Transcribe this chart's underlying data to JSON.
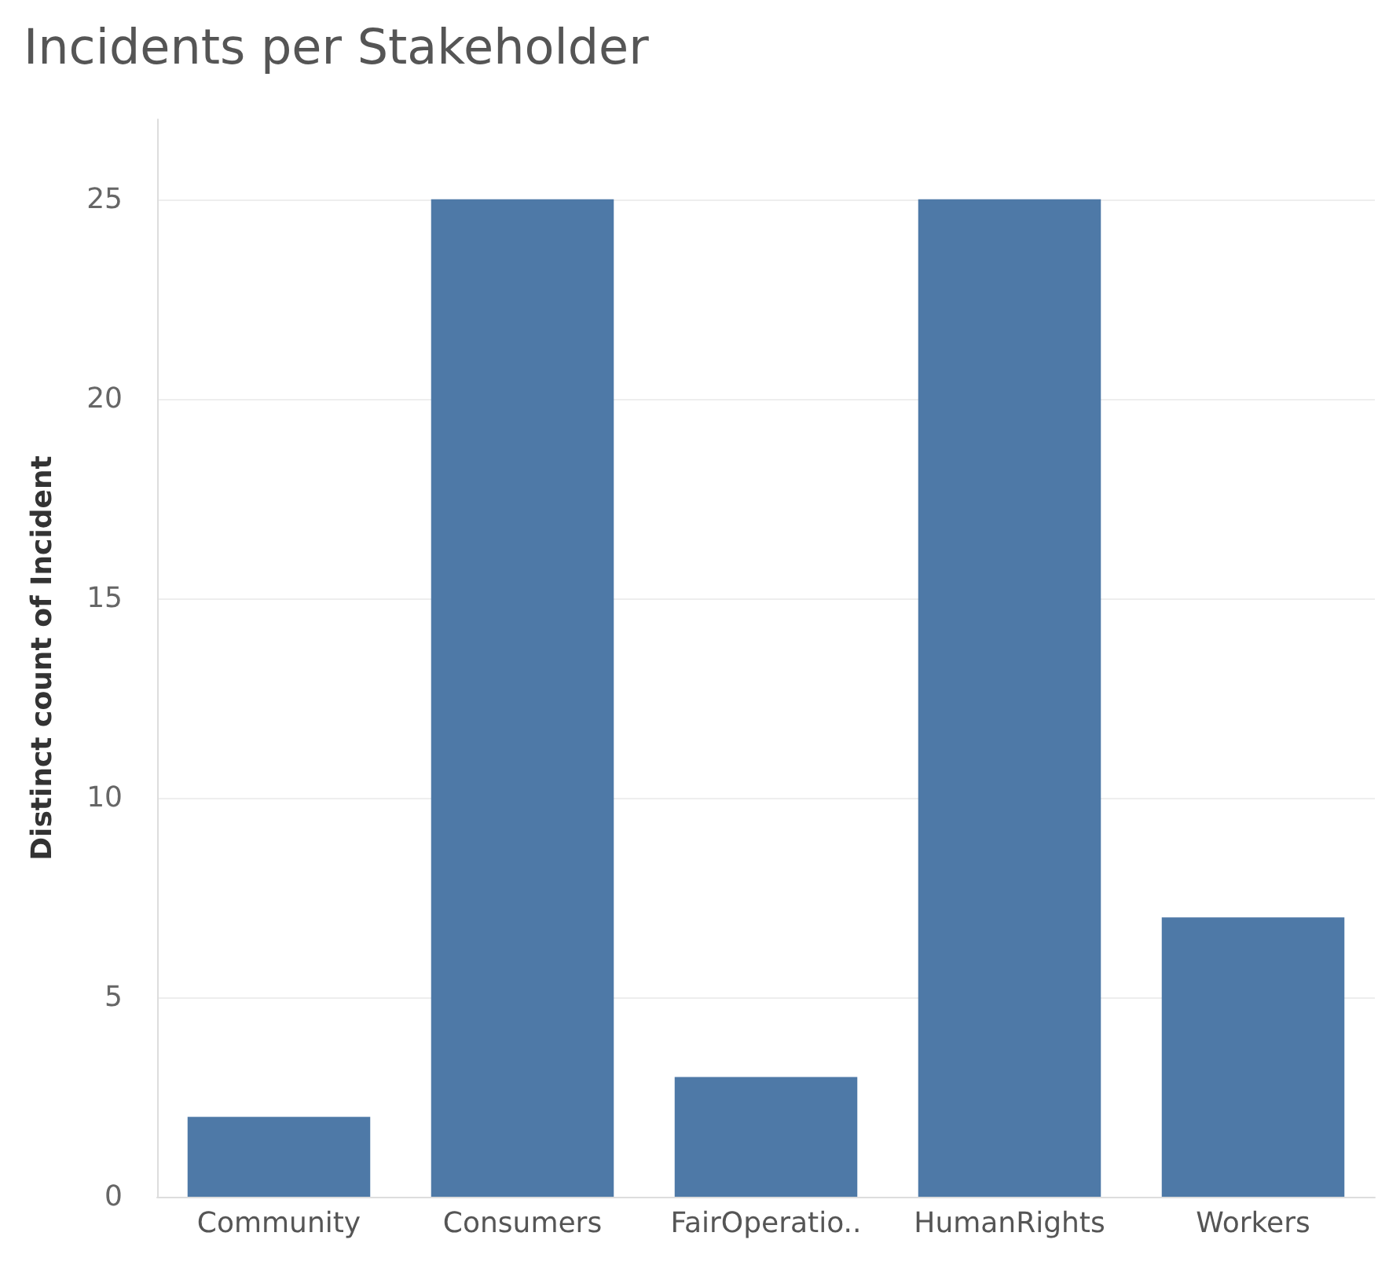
{
  "chart_data": {
    "type": "bar",
    "title": "Incidents per Stakeholder",
    "ylabel": "Distinct count of Incident",
    "categories": [
      "Community",
      "Consumers",
      "FairOperatio..",
      "HumanRights",
      "Workers"
    ],
    "values": [
      2,
      25,
      3,
      25,
      7
    ],
    "color": "#4e79a7",
    "ylim": [
      0,
      27
    ],
    "yticks": [
      0,
      5,
      10,
      15,
      20,
      25
    ],
    "grid": "y"
  }
}
